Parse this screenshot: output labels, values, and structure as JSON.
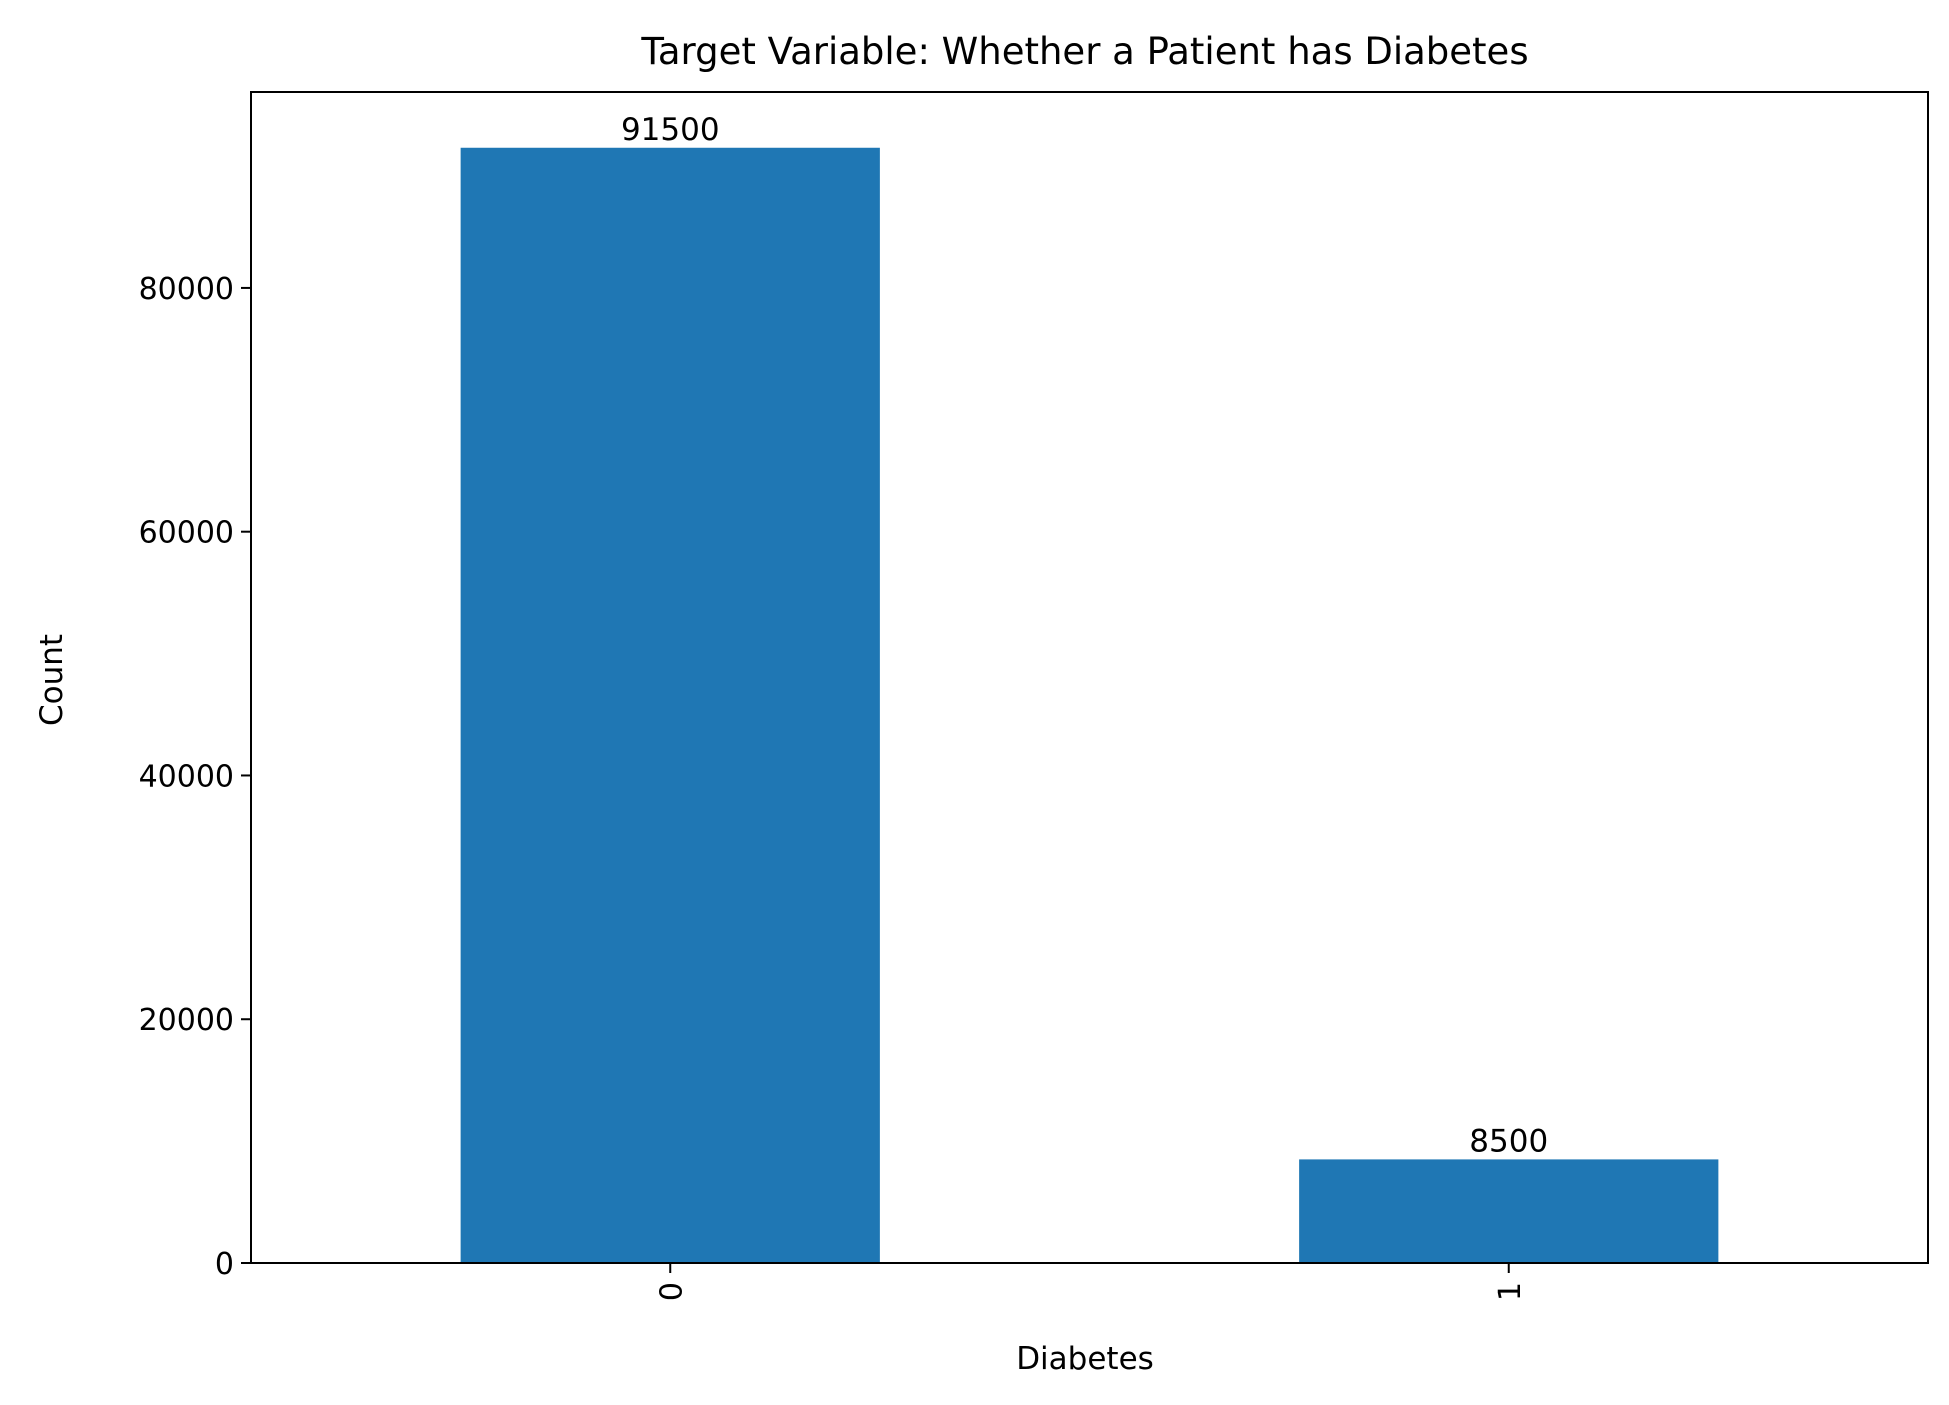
{
  "chart_data": {
    "type": "bar",
    "title": "Target Variable: Whether a Patient has Diabetes",
    "xlabel": "Diabetes",
    "ylabel": "Count",
    "categories": [
      "0",
      "1"
    ],
    "values": [
      91500,
      8500
    ],
    "data_labels": [
      "91500",
      "8500"
    ],
    "y_ticks": [
      0,
      20000,
      40000,
      60000,
      80000
    ],
    "y_tick_labels": [
      "0",
      "20000",
      "40000",
      "60000",
      "80000"
    ],
    "ylim": [
      0,
      96075
    ],
    "x_tick_rotation": "vertical",
    "grid": false,
    "legend": "none",
    "bar_color": "#1f77b4"
  }
}
